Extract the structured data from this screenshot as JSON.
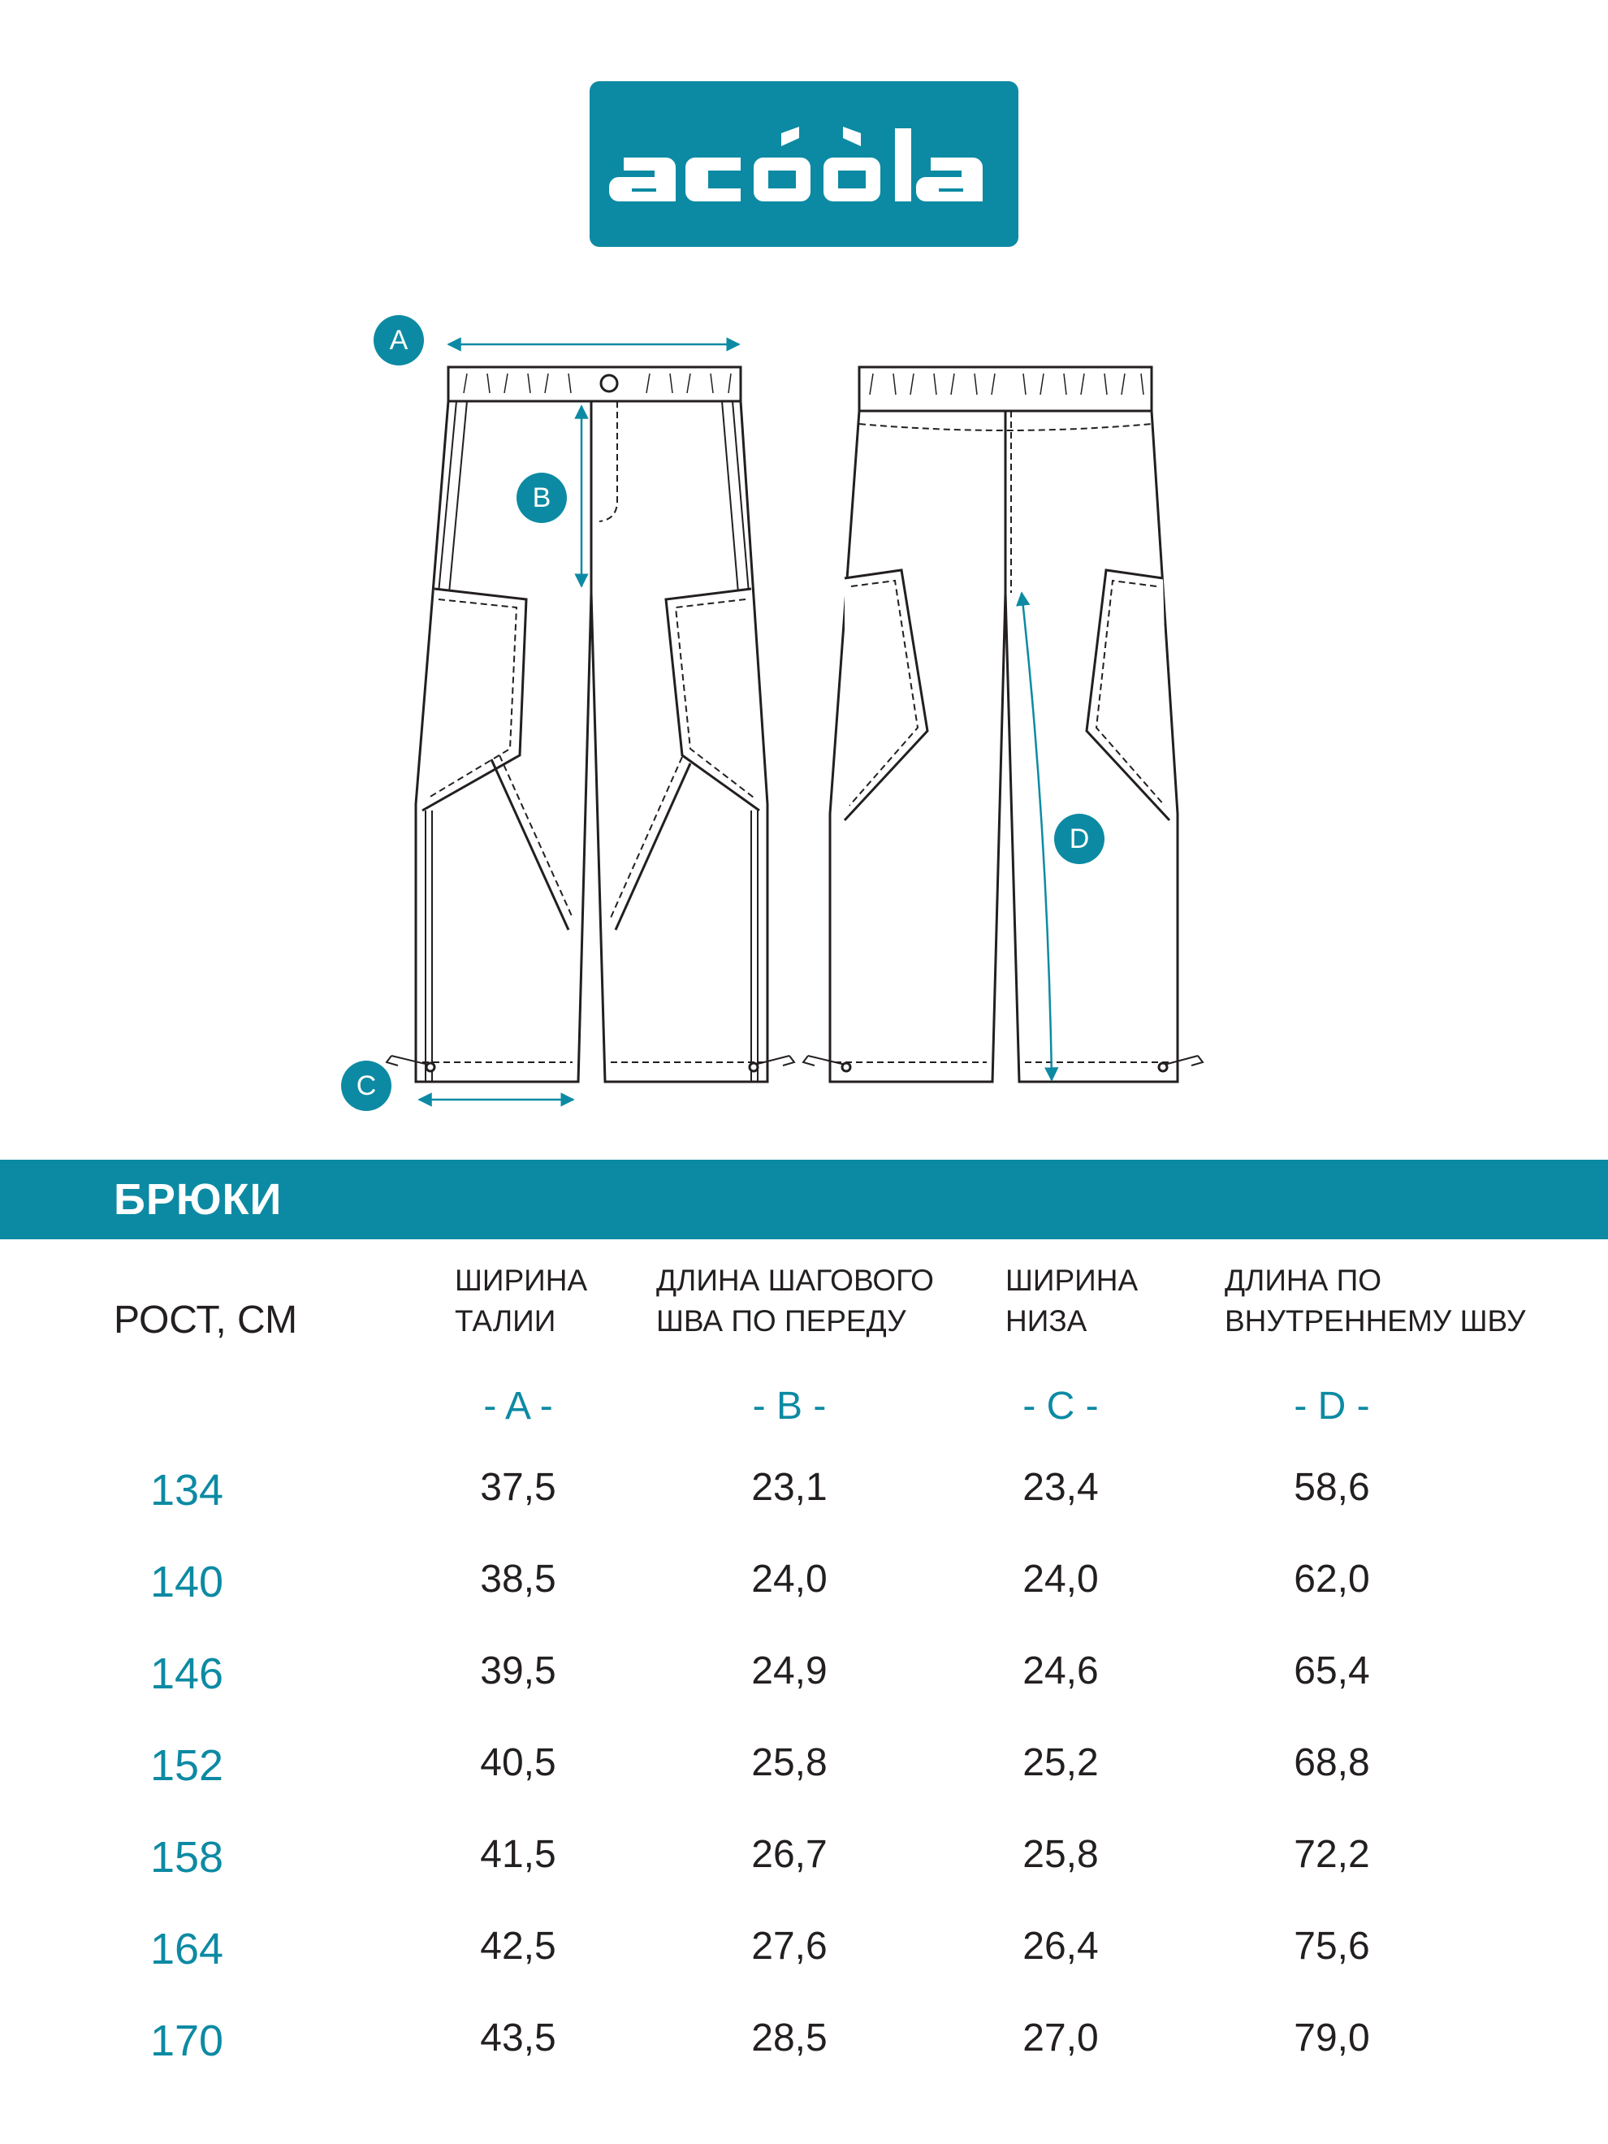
{
  "brand": {
    "logo_text": "acóòla",
    "color": "#0d8aa3"
  },
  "diagram": {
    "markers": [
      {
        "id": "A",
        "label": "A"
      },
      {
        "id": "B",
        "label": "B"
      },
      {
        "id": "C",
        "label": "C"
      },
      {
        "id": "D",
        "label": "D"
      }
    ],
    "line_color": "#231f20",
    "accent_color": "#0d8aa3"
  },
  "section": {
    "title": "БРЮКИ"
  },
  "table": {
    "height_header": "РОСТ, СМ",
    "columns": [
      {
        "line1": "ШИРИНА",
        "line2": "ТАЛИИ",
        "code": "- A -"
      },
      {
        "line1": "ДЛИНА ШАГОВОГО",
        "line2": "ШВА ПО ПЕРЕДУ",
        "code": "- B -"
      },
      {
        "line1": "ШИРИНА",
        "line2": "НИЗА",
        "code": "- C -"
      },
      {
        "line1": "ДЛИНА ПО",
        "line2": "ВНУТРЕННЕМУ ШВУ",
        "code": "- D -"
      }
    ],
    "rows": [
      {
        "height": "134",
        "values": [
          "37,5",
          "23,1",
          "23,4",
          "58,6"
        ]
      },
      {
        "height": "140",
        "values": [
          "38,5",
          "24,0",
          "24,0",
          "62,0"
        ]
      },
      {
        "height": "146",
        "values": [
          "39,5",
          "24,9",
          "24,6",
          "65,4"
        ]
      },
      {
        "height": "152",
        "values": [
          "40,5",
          "25,8",
          "25,2",
          "68,8"
        ]
      },
      {
        "height": "158",
        "values": [
          "41,5",
          "26,7",
          "25,8",
          "72,2"
        ]
      },
      {
        "height": "164",
        "values": [
          "42,5",
          "27,6",
          "26,4",
          "75,6"
        ]
      },
      {
        "height": "170",
        "values": [
          "43,5",
          "28,5",
          "27,0",
          "79,0"
        ]
      }
    ]
  }
}
